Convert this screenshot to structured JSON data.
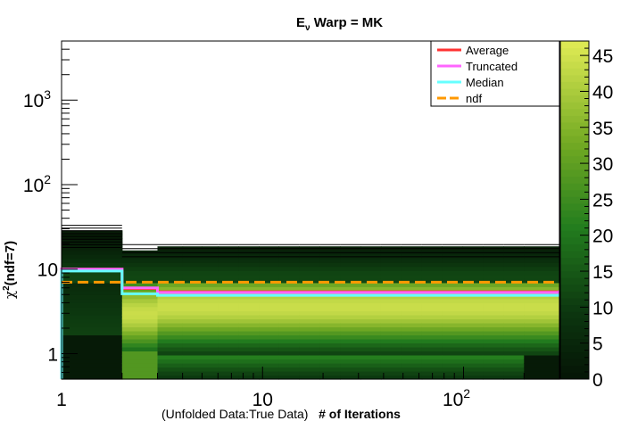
{
  "title": {
    "main": "E",
    "sub": "ν",
    "rest": " Warp = MK"
  },
  "xlabel": {
    "prefix": "(Unfolded Data:True Data)",
    "main": "# of Iterations"
  },
  "ylabel": {
    "chi": "χ",
    "sup": "2",
    "rest": "(ndf=7)"
  },
  "chart_data": {
    "type": "heatmap",
    "x_scale": "log",
    "y_scale": "log",
    "xlim": [
      1,
      300
    ],
    "ylim": [
      0.5,
      5000
    ],
    "x_ticks": [
      {
        "value": 1,
        "label": "1"
      },
      {
        "value": 10,
        "label": "10"
      },
      {
        "value": 100,
        "label": "10",
        "sup": "2"
      }
    ],
    "y_ticks": [
      {
        "value": 1,
        "label": "1"
      },
      {
        "value": 10,
        "label": "10"
      },
      {
        "value": 100,
        "label": "10",
        "sup": "2"
      },
      {
        "value": 1000,
        "label": "10",
        "sup": "3"
      }
    ],
    "colorbar": {
      "min": 0,
      "max": 47,
      "ticks": [
        0,
        5,
        10,
        15,
        20,
        25,
        30,
        35,
        40,
        45
      ]
    },
    "x_bin_edges": [
      1,
      2,
      3,
      4,
      5,
      6,
      7.6,
      9.6,
      12,
      15.2,
      19.2,
      24.3,
      30.7,
      38.8,
      49,
      62,
      78,
      99,
      125,
      158,
      200,
      300
    ],
    "series": [
      {
        "name": "Average",
        "color": "#ff3333",
        "style": "solid",
        "x": [
          1,
          2,
          3,
          300
        ],
        "y": [
          10,
          5.9,
          5.4,
          5.4
        ]
      },
      {
        "name": "Truncated",
        "color": "#ff66ff",
        "style": "solid",
        "x": [
          1,
          2,
          3,
          300
        ],
        "y": [
          10,
          6.0,
          5.3,
          5.6
        ]
      },
      {
        "name": "Median",
        "color": "#66ffff",
        "style": "solid",
        "x": [
          1,
          2,
          3,
          300
        ],
        "y": [
          9.5,
          5.1,
          4.9,
          5.1
        ]
      },
      {
        "name": "ndf",
        "color": "#ff9900",
        "style": "dashed",
        "x": [
          1,
          300
        ],
        "y": [
          7,
          7
        ]
      }
    ],
    "legend_position": "top-right"
  }
}
